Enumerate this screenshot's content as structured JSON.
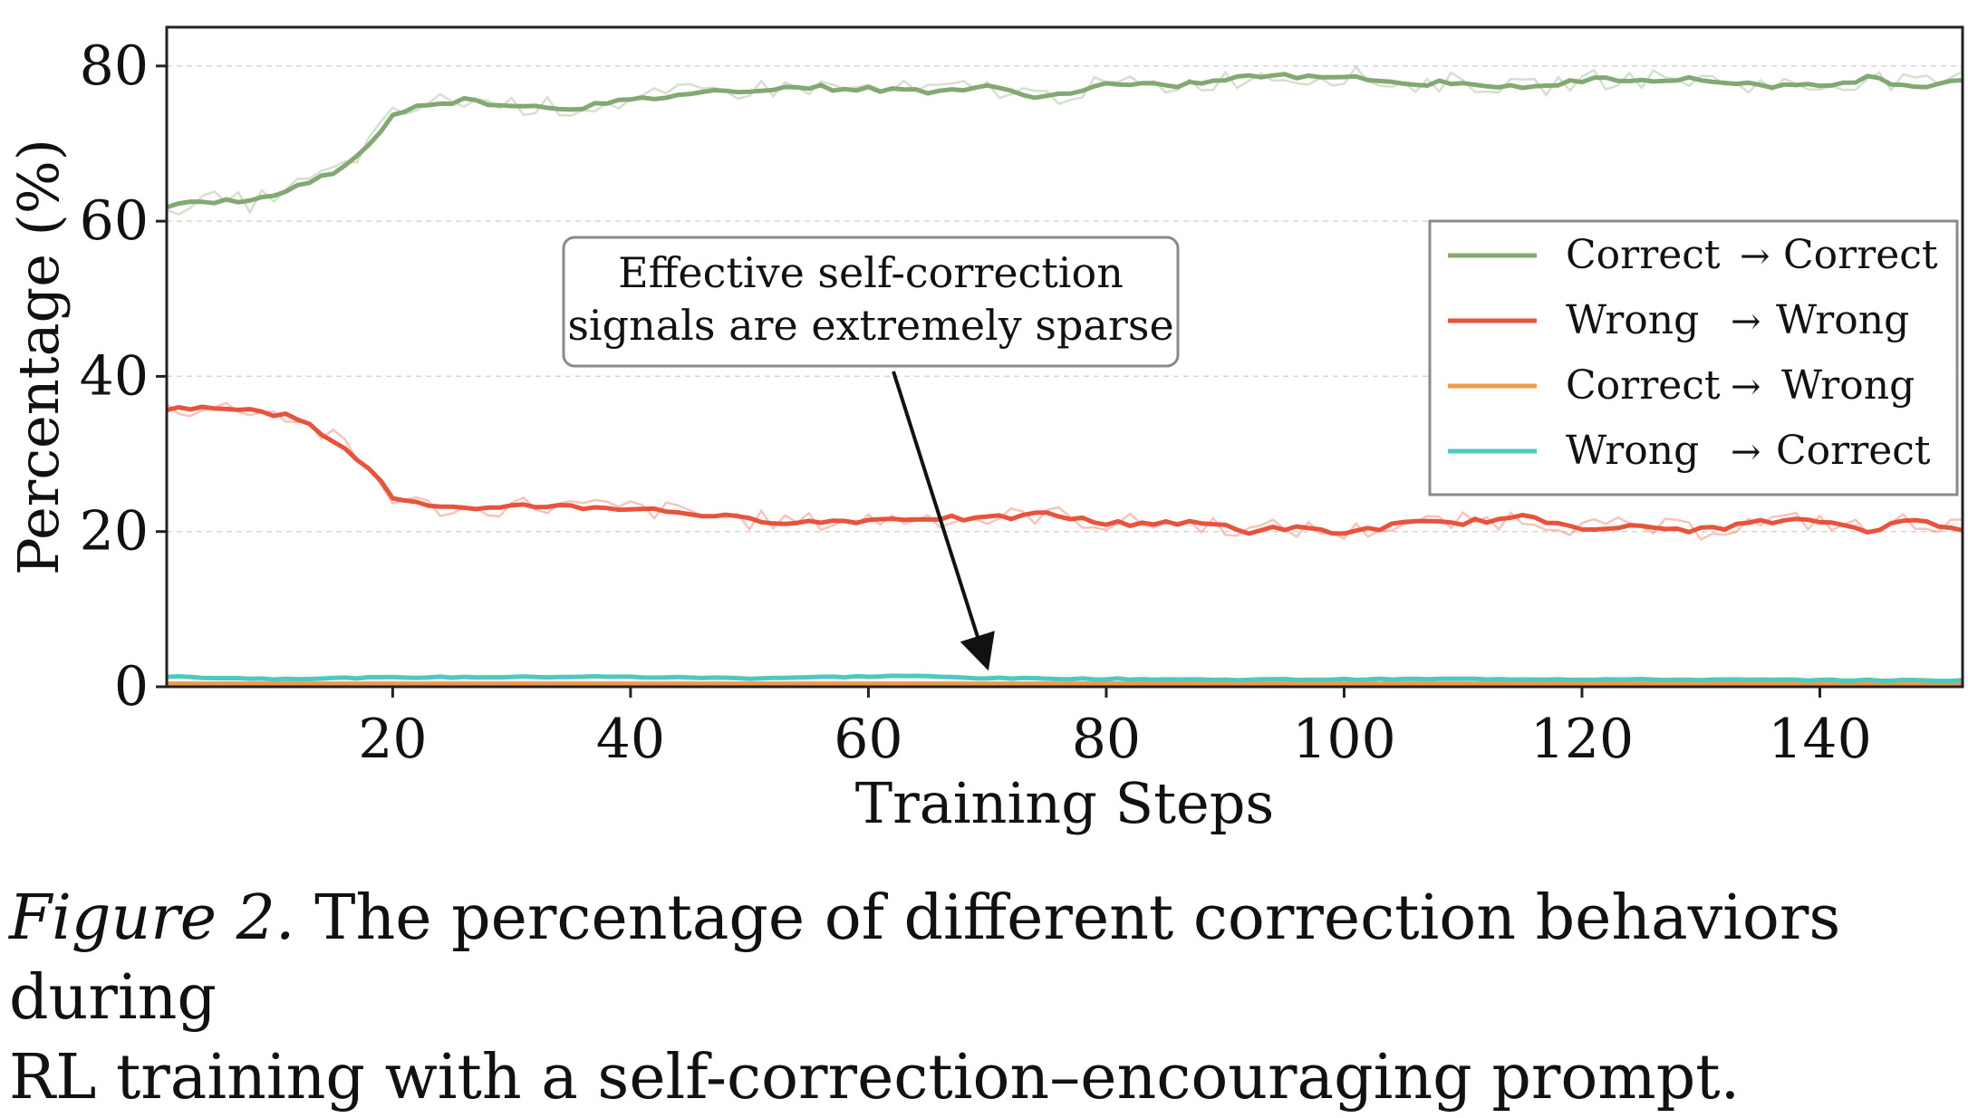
{
  "chart_data": {
    "type": "line",
    "xlabel": "Training Steps",
    "ylabel": "Percentage (%)",
    "xlim": [
      1,
      152
    ],
    "ylim": [
      0,
      85
    ],
    "xticks": [
      20,
      40,
      60,
      80,
      100,
      120,
      140
    ],
    "yticks": [
      0,
      20,
      40,
      60,
      80
    ],
    "grid": "horizontal dashed",
    "legend_position": "center-right",
    "annotation": {
      "text_line1": "Effective self-correction",
      "text_line2": "signals are extremely sparse",
      "arrow_target_x": 70,
      "arrow_target_y": 2.5
    },
    "series": [
      {
        "name": "Correct → Correct",
        "legend_from": "Correct",
        "legend_to": "Correct",
        "color": "#82a874",
        "key_points": [
          [
            1,
            62
          ],
          [
            5,
            62.6
          ],
          [
            8,
            62.4
          ],
          [
            12,
            64.5
          ],
          [
            16,
            67
          ],
          [
            18,
            70
          ],
          [
            20,
            73.5
          ],
          [
            23,
            75.2
          ],
          [
            26,
            75.6
          ],
          [
            30,
            75
          ],
          [
            35,
            74.6
          ],
          [
            40,
            75.5
          ],
          [
            45,
            76.5
          ],
          [
            50,
            77
          ],
          [
            55,
            77.3
          ],
          [
            60,
            77
          ],
          [
            65,
            76.8
          ],
          [
            70,
            77.2
          ],
          [
            75,
            76
          ],
          [
            80,
            77.6
          ],
          [
            85,
            77.4
          ],
          [
            90,
            78.2
          ],
          [
            93,
            78.8
          ],
          [
            97,
            78.5
          ],
          [
            100,
            78.9
          ],
          [
            105,
            77.6
          ],
          [
            110,
            78
          ],
          [
            115,
            77
          ],
          [
            120,
            78.2
          ],
          [
            125,
            78.4
          ],
          [
            130,
            78.2
          ],
          [
            135,
            77.6
          ],
          [
            140,
            77.3
          ],
          [
            144,
            78.5
          ],
          [
            148,
            77.4
          ],
          [
            152,
            78.3
          ]
        ]
      },
      {
        "name": "Wrong → Wrong",
        "legend_from": "Wrong",
        "legend_to": "Wrong",
        "color": "#e8533d",
        "key_points": [
          [
            1,
            36
          ],
          [
            4,
            35.8
          ],
          [
            8,
            36
          ],
          [
            12,
            34.5
          ],
          [
            16,
            31
          ],
          [
            18,
            28
          ],
          [
            20,
            24.5
          ],
          [
            23,
            23.2
          ],
          [
            27,
            22.6
          ],
          [
            30,
            23.5
          ],
          [
            35,
            23.2
          ],
          [
            40,
            23
          ],
          [
            45,
            22.4
          ],
          [
            50,
            21.5
          ],
          [
            55,
            21.2
          ],
          [
            60,
            21.5
          ],
          [
            65,
            21.8
          ],
          [
            70,
            21.6
          ],
          [
            75,
            22.3
          ],
          [
            80,
            21
          ],
          [
            85,
            21.2
          ],
          [
            90,
            20.8
          ],
          [
            92,
            20
          ],
          [
            95,
            20.5
          ],
          [
            100,
            19.8
          ],
          [
            105,
            21
          ],
          [
            110,
            21.2
          ],
          [
            115,
            21.8
          ],
          [
            120,
            20.6
          ],
          [
            125,
            20.5
          ],
          [
            130,
            20.2
          ],
          [
            135,
            21.2
          ],
          [
            140,
            21.4
          ],
          [
            144,
            20.2
          ],
          [
            148,
            21.5
          ],
          [
            152,
            20.4
          ]
        ]
      },
      {
        "name": "Correct → Wrong",
        "legend_from": "Correct",
        "legend_to": "Wrong",
        "color": "#f39a4a",
        "key_points": [
          [
            1,
            0.4
          ],
          [
            152,
            0.4
          ]
        ]
      },
      {
        "name": "Wrong → Correct",
        "legend_from": "Wrong",
        "legend_to": "Correct",
        "color": "#4fc9bd",
        "key_points": [
          [
            1,
            1.3
          ],
          [
            10,
            1
          ],
          [
            20,
            1.2
          ],
          [
            37,
            1.3
          ],
          [
            50,
            1.1
          ],
          [
            63,
            1.4
          ],
          [
            70,
            1.1
          ],
          [
            90,
            0.9
          ],
          [
            110,
            1
          ],
          [
            130,
            0.9
          ],
          [
            152,
            0.8
          ]
        ]
      }
    ]
  },
  "caption": {
    "label": "Figure 2.",
    "line1": "The percentage of different correction behaviors during",
    "line2": "RL training with a self-correction–encouraging prompt."
  }
}
